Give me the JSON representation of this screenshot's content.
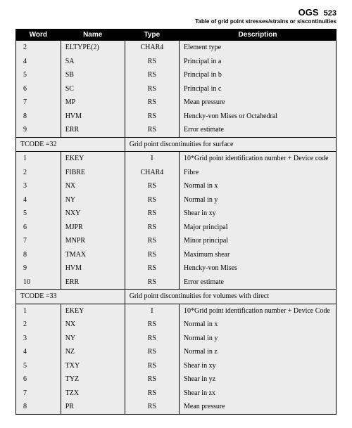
{
  "header": {
    "ogs": "OGS",
    "pageNumber": "523",
    "subtitle": "Table of grid point stresses/strains or siscontinuities"
  },
  "columns": [
    "Word",
    "Name",
    "Type",
    "Description"
  ],
  "sections": [
    {
      "rows": [
        {
          "word": "2",
          "name": "ELTYPE(2)",
          "type": "CHAR4",
          "desc": "Element type"
        },
        {
          "word": "4",
          "name": "SA",
          "type": "RS",
          "desc": "Principal in a"
        },
        {
          "word": "5",
          "name": "SB",
          "type": "RS",
          "desc": "Principal in b"
        },
        {
          "word": "6",
          "name": "SC",
          "type": "RS",
          "desc": "Principal in c"
        },
        {
          "word": "7",
          "name": "MP",
          "type": "RS",
          "desc": "Mean pressure"
        },
        {
          "word": "8",
          "name": "HVM",
          "type": "RS",
          "desc": "Hencky-von Mises or Octahedral"
        },
        {
          "word": "9",
          "name": "ERR",
          "type": "RS",
          "desc": "Error estimate"
        }
      ]
    },
    {
      "label": "TCODE =32",
      "sectionDesc": "Grid point discontinuities for surface",
      "rows": [
        {
          "word": "1",
          "name": "EKEY",
          "type": "I",
          "desc": "10*Grid point identification number + Device code"
        },
        {
          "word": "2",
          "name": "FIBRE",
          "type": "CHAR4",
          "desc": "Fibre"
        },
        {
          "word": "3",
          "name": "NX",
          "type": "RS",
          "desc": "Normal in x"
        },
        {
          "word": "4",
          "name": "NY",
          "type": "RS",
          "desc": "Normal in y"
        },
        {
          "word": "5",
          "name": "NXY",
          "type": "RS",
          "desc": "Shear in xy"
        },
        {
          "word": "6",
          "name": "MJPR",
          "type": "RS",
          "desc": "Major principal"
        },
        {
          "word": "7",
          "name": "MNPR",
          "type": "RS",
          "desc": "Minor principal"
        },
        {
          "word": "8",
          "name": "TMAX",
          "type": "RS",
          "desc": "Maximum shear"
        },
        {
          "word": "9",
          "name": "HVM",
          "type": "RS",
          "desc": "Hencky-von Mises"
        },
        {
          "word": "10",
          "name": "ERR",
          "type": "RS",
          "desc": "Error estimate"
        }
      ]
    },
    {
      "label": "TCODE =33",
      "sectionDesc": "Grid point discontinuities for volumes with direct",
      "rows": [
        {
          "word": "1",
          "name": "EKEY",
          "type": "I",
          "desc": "10*Grid point identification number + Device Code"
        },
        {
          "word": "2",
          "name": "NX",
          "type": "RS",
          "desc": "Normal in x"
        },
        {
          "word": "3",
          "name": "NY",
          "type": "RS",
          "desc": "Normal in y"
        },
        {
          "word": "4",
          "name": "NZ",
          "type": "RS",
          "desc": "Normal in z"
        },
        {
          "word": "5",
          "name": "TXY",
          "type": "RS",
          "desc": "Shear in xy"
        },
        {
          "word": "6",
          "name": "TYZ",
          "type": "RS",
          "desc": "Shear in yz"
        },
        {
          "word": "7",
          "name": "TZX",
          "type": "RS",
          "desc": "Shear in zx"
        },
        {
          "word": "8",
          "name": "PR",
          "type": "RS",
          "desc": "Mean pressure"
        }
      ]
    }
  ]
}
